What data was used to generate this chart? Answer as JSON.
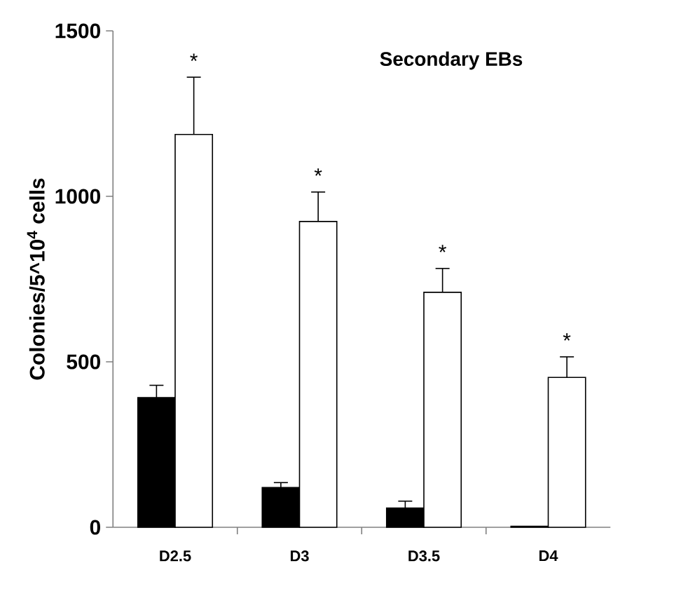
{
  "chart_data": {
    "type": "bar",
    "title": "Secondary EBs",
    "ylabel": "Colonies/5^10$^{4}$ cells",
    "categories": [
      "D2.5",
      "D3",
      "D3.5",
      "D4"
    ],
    "series": [
      {
        "color": "#000000",
        "values": [
          392,
          120,
          58,
          3
        ],
        "errors": [
          [
            392,
            429
          ],
          [
            120,
            135
          ],
          [
            58,
            79
          ],
          null
        ]
      },
      {
        "color": "#ffffff",
        "values": [
          1187,
          924,
          710,
          453
        ],
        "errors": [
          [
            1187,
            1360
          ],
          [
            924,
            1013
          ],
          [
            710,
            782
          ],
          [
            453,
            515
          ]
        ]
      }
    ],
    "ylim": [
      0,
      1500
    ],
    "yticks": [
      0,
      500,
      1000,
      1500
    ],
    "grid": false,
    "annotations": [
      "*",
      "*",
      "*",
      "*"
    ]
  }
}
